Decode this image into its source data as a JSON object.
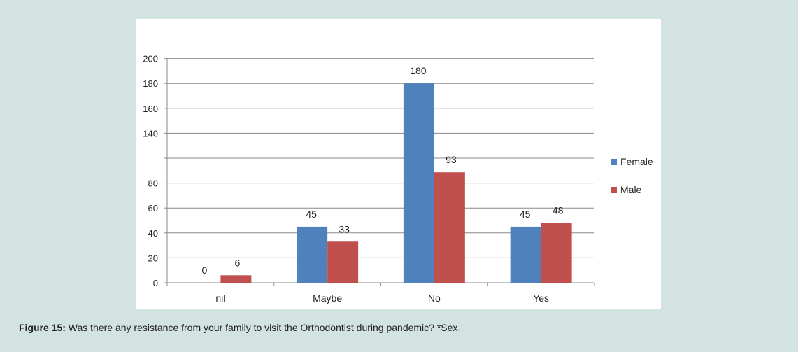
{
  "caption": {
    "label": "Figure 15:",
    "text": "Was there any resistance from your family to visit the Orthodontist during pandemic? *Sex."
  },
  "chart_data": {
    "type": "bar",
    "categories": [
      "nil",
      "Maybe",
      "No",
      "Yes"
    ],
    "series": [
      {
        "name": "Female",
        "color": "#4f81bd",
        "values": [
          0,
          45,
          180,
          45
        ]
      },
      {
        "name": "Male",
        "color": "#c0504d",
        "values": [
          6,
          33,
          93,
          48
        ]
      }
    ],
    "y_tick_labels": [
      "0",
      "20",
      "40",
      "60",
      "80",
      "",
      "140",
      "160",
      "180",
      "200"
    ],
    "ylim": [
      0,
      200
    ],
    "grid": true,
    "legend_position": "right"
  }
}
